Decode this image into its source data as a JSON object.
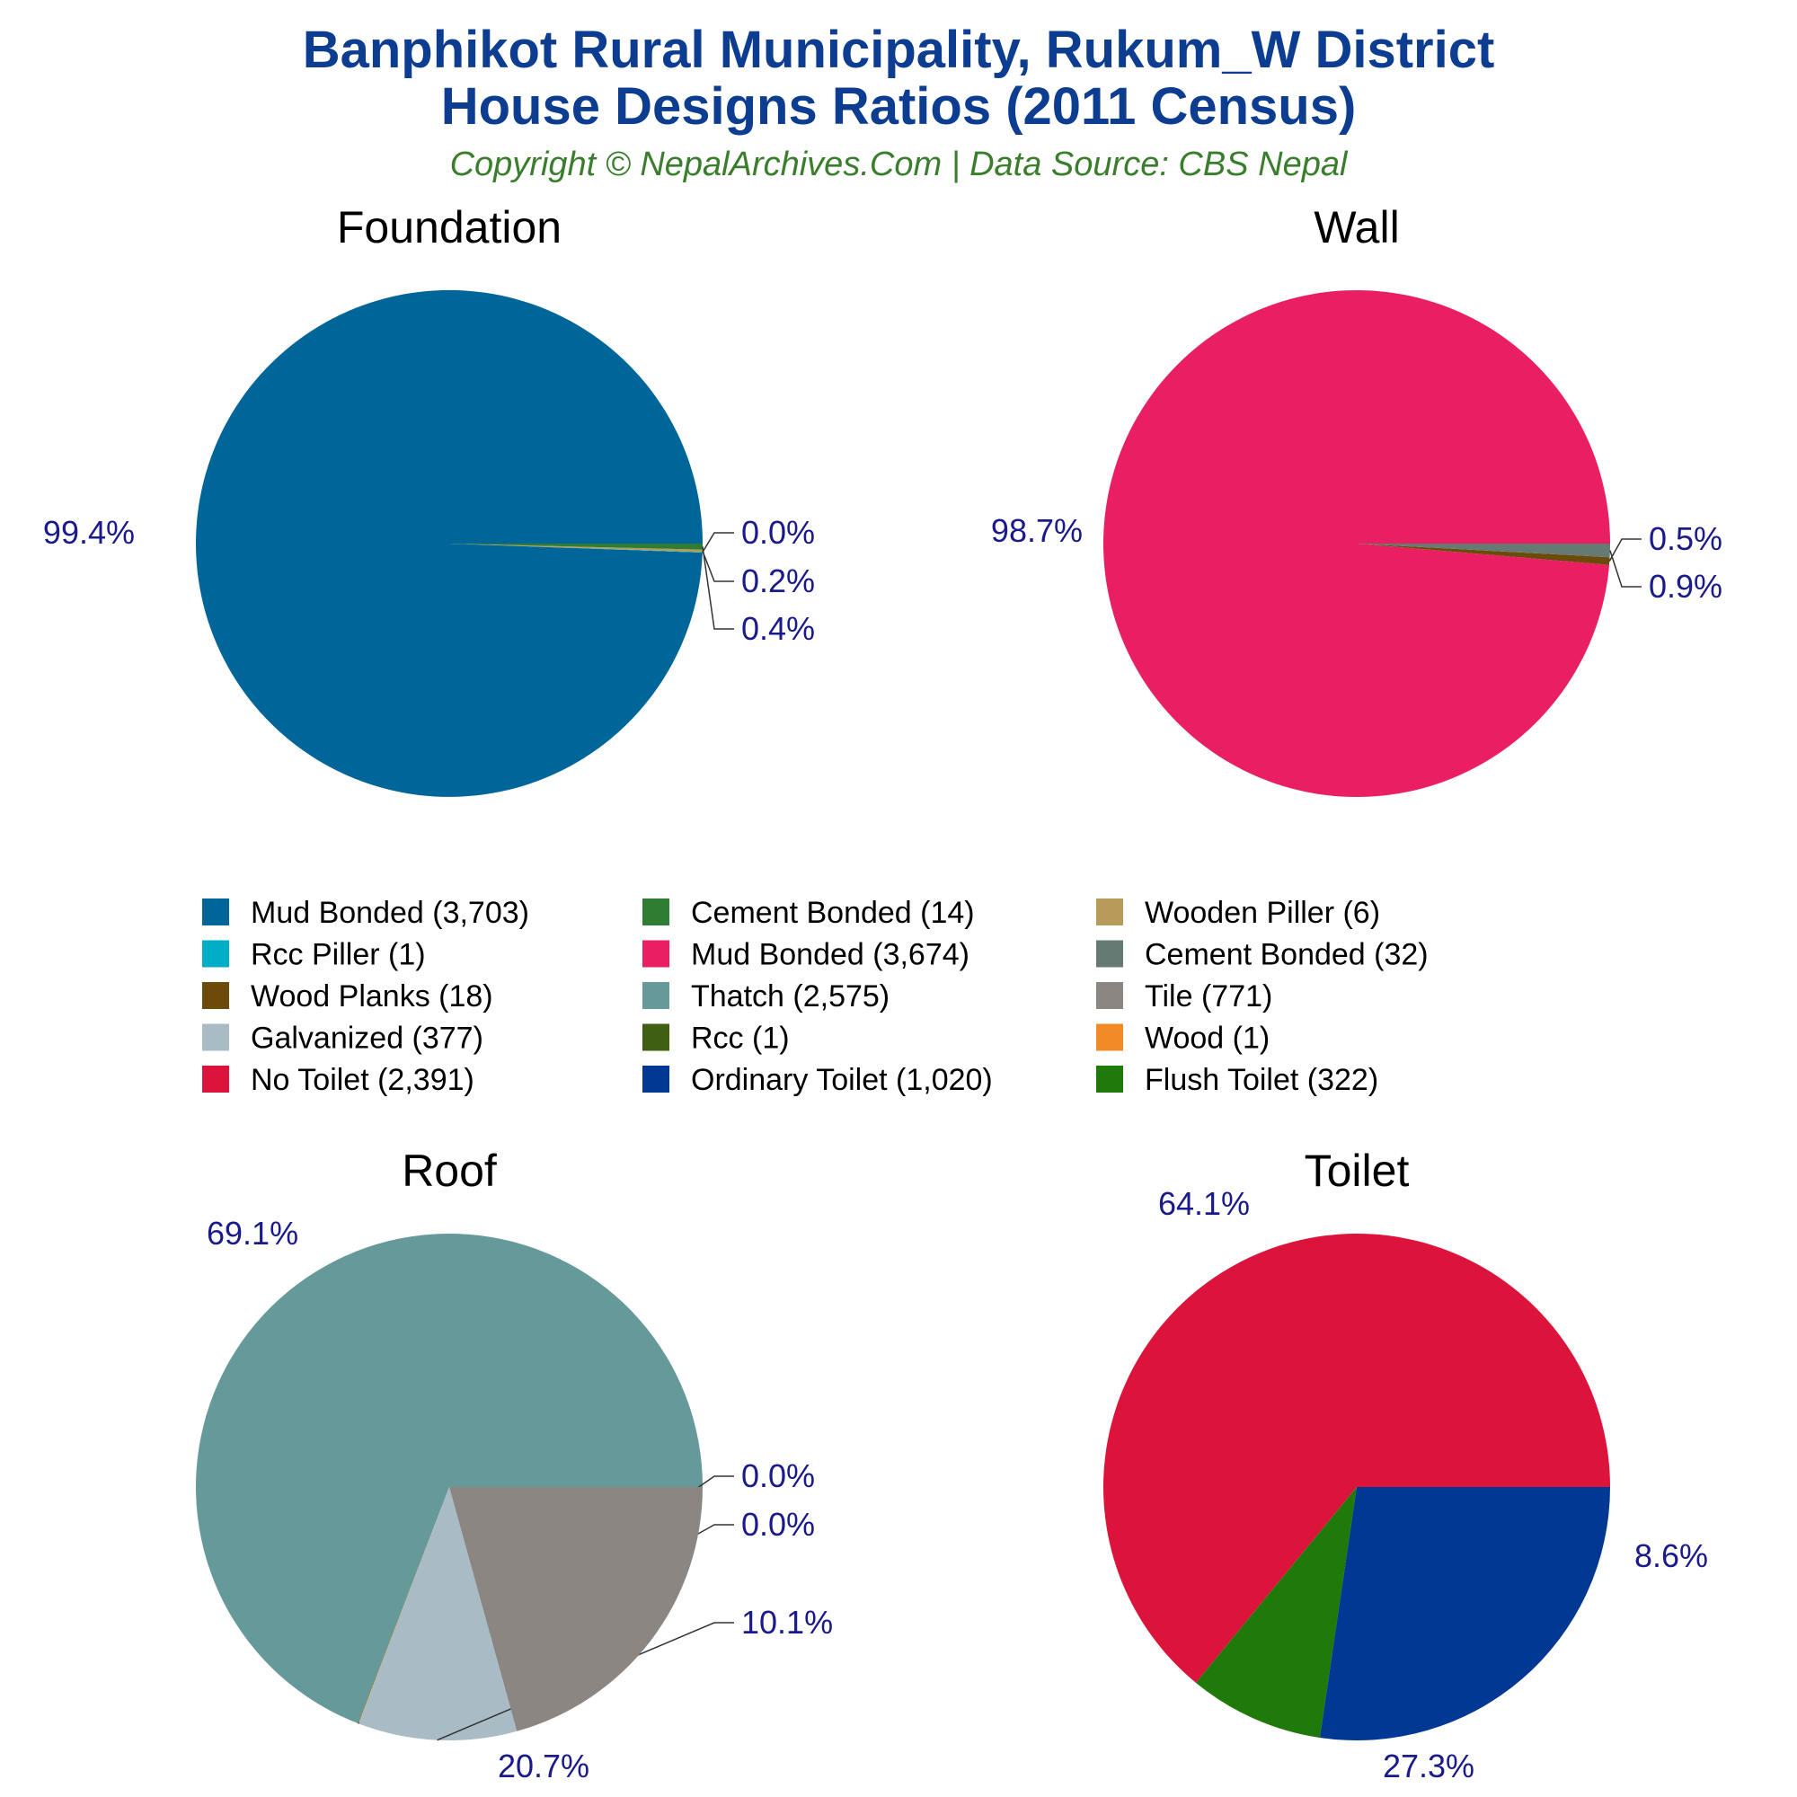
{
  "header": {
    "title_line1": "Banphikot Rural Municipality, Rukum_W District",
    "title_line2": "House Designs Ratios (2011 Census)",
    "subtitle": "Copyright © NepalArchives.Com | Data Source: CBS Nepal"
  },
  "colors": {
    "title": "#0d3d91",
    "subtitle": "#3a7d2c",
    "percent_labels": "#1a1a8c"
  },
  "legend": {
    "columns": 3,
    "entries": [
      {
        "label": "Mud Bonded (3,703)",
        "color": "#006699"
      },
      {
        "label": "Cement Bonded (14)",
        "color": "#2e7d32"
      },
      {
        "label": "Wooden Piller (6)",
        "color": "#b89a5a"
      },
      {
        "label": "Rcc Piller (1)",
        "color": "#00aec7"
      },
      {
        "label": "Mud Bonded (3,674)",
        "color": "#e91e63"
      },
      {
        "label": "Cement Bonded (32)",
        "color": "#647a73"
      },
      {
        "label": "Wood Planks (18)",
        "color": "#6b4a0a"
      },
      {
        "label": "Thatch (2,575)",
        "color": "#669999"
      },
      {
        "label": "Tile (771)",
        "color": "#8c8683"
      },
      {
        "label": "Galvanized (377)",
        "color": "#a9bcc6"
      },
      {
        "label": "Rcc (1)",
        "color": "#3f5f12"
      },
      {
        "label": "Wood (1)",
        "color": "#f28a25"
      },
      {
        "label": "No Toilet (2,391)",
        "color": "#dc143c"
      },
      {
        "label": "Ordinary Toilet (1,020)",
        "color": "#003893"
      },
      {
        "label": "Flush Toilet (322)",
        "color": "#1f7a0a"
      }
    ]
  },
  "chart_data": [
    {
      "type": "pie",
      "title": "Foundation",
      "slices": [
        {
          "name": "Mud Bonded",
          "value": 3703,
          "color": "#006699",
          "label": "99.4%"
        },
        {
          "name": "Rcc Piller",
          "value": 1,
          "color": "#00aec7",
          "label": "0.0%"
        },
        {
          "name": "Wooden Piller",
          "value": 6,
          "color": "#b89a5a",
          "label": "0.2%"
        },
        {
          "name": "Cement Bonded",
          "value": 14,
          "color": "#2e7d32",
          "label": "0.4%"
        }
      ]
    },
    {
      "type": "pie",
      "title": "Wall",
      "slices": [
        {
          "name": "Mud Bonded",
          "value": 3674,
          "color": "#e91e63",
          "label": "98.7%"
        },
        {
          "name": "Wood Planks",
          "value": 18,
          "color": "#6b4a0a",
          "label": "0.5%"
        },
        {
          "name": "Cement Bonded",
          "value": 32,
          "color": "#647a73",
          "label": "0.9%"
        }
      ]
    },
    {
      "type": "pie",
      "title": "Roof",
      "slices": [
        {
          "name": "Thatch",
          "value": 2575,
          "color": "#669999",
          "label": "69.1%"
        },
        {
          "name": "Rcc",
          "value": 1,
          "color": "#3f5f12",
          "label": "0.0%"
        },
        {
          "name": "Wood",
          "value": 1,
          "color": "#f28a25",
          "label": "0.0%"
        },
        {
          "name": "Galvanized",
          "value": 377,
          "color": "#a9bcc6",
          "label": "10.1%"
        },
        {
          "name": "Tile",
          "value": 771,
          "color": "#8c8683",
          "label": "20.7%"
        }
      ]
    },
    {
      "type": "pie",
      "title": "Toilet",
      "slices": [
        {
          "name": "No Toilet",
          "value": 2391,
          "color": "#dc143c",
          "label": "64.1%"
        },
        {
          "name": "Flush Toilet",
          "value": 322,
          "color": "#1f7a0a",
          "label": "8.6%"
        },
        {
          "name": "Ordinary Toilet",
          "value": 1020,
          "color": "#003893",
          "label": "27.3%"
        }
      ]
    }
  ]
}
